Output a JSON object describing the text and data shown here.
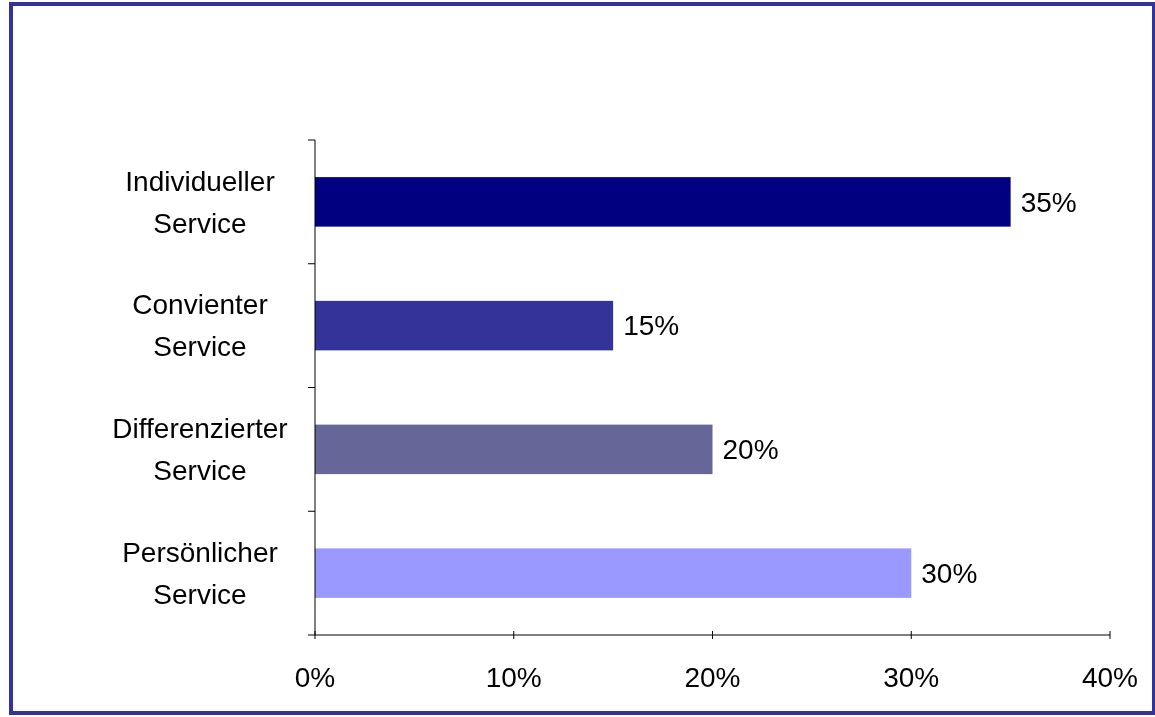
{
  "chart_data": {
    "type": "bar",
    "orientation": "horizontal",
    "categories": [
      "Individueller Service",
      "Convienter Service",
      "Differenzierter Service",
      "Persönlicher Service"
    ],
    "values": [
      35,
      15,
      20,
      30
    ],
    "colors": [
      "#000080",
      "#333399",
      "#666699",
      "#9999ff"
    ],
    "value_labels": [
      "35%",
      "15%",
      "20%",
      "30%"
    ],
    "xlim": [
      0,
      40
    ],
    "xticks": [
      {
        "value": 0,
        "label": "0%"
      },
      {
        "value": 10,
        "label": "10%"
      },
      {
        "value": 20,
        "label": "20%"
      },
      {
        "value": 30,
        "label": "30%"
      },
      {
        "value": 40,
        "label": "40%"
      }
    ],
    "grid": false
  }
}
